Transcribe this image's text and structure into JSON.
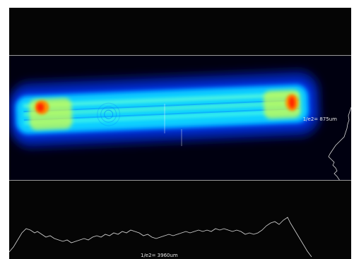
{
  "profiles": {
    "vertical_width_label": "1/e2= 875um",
    "horizontal_width_label": "1/e2= 3960um"
  },
  "colors": {
    "background": "#050505",
    "profile_line": "#d8d8d8",
    "divider": "#9a9a9a",
    "colormap": [
      "#00007a",
      "#0033ff",
      "#00ccff",
      "#66ffcc",
      "#ffff33",
      "#ff8800",
      "#ff2200"
    ]
  }
}
